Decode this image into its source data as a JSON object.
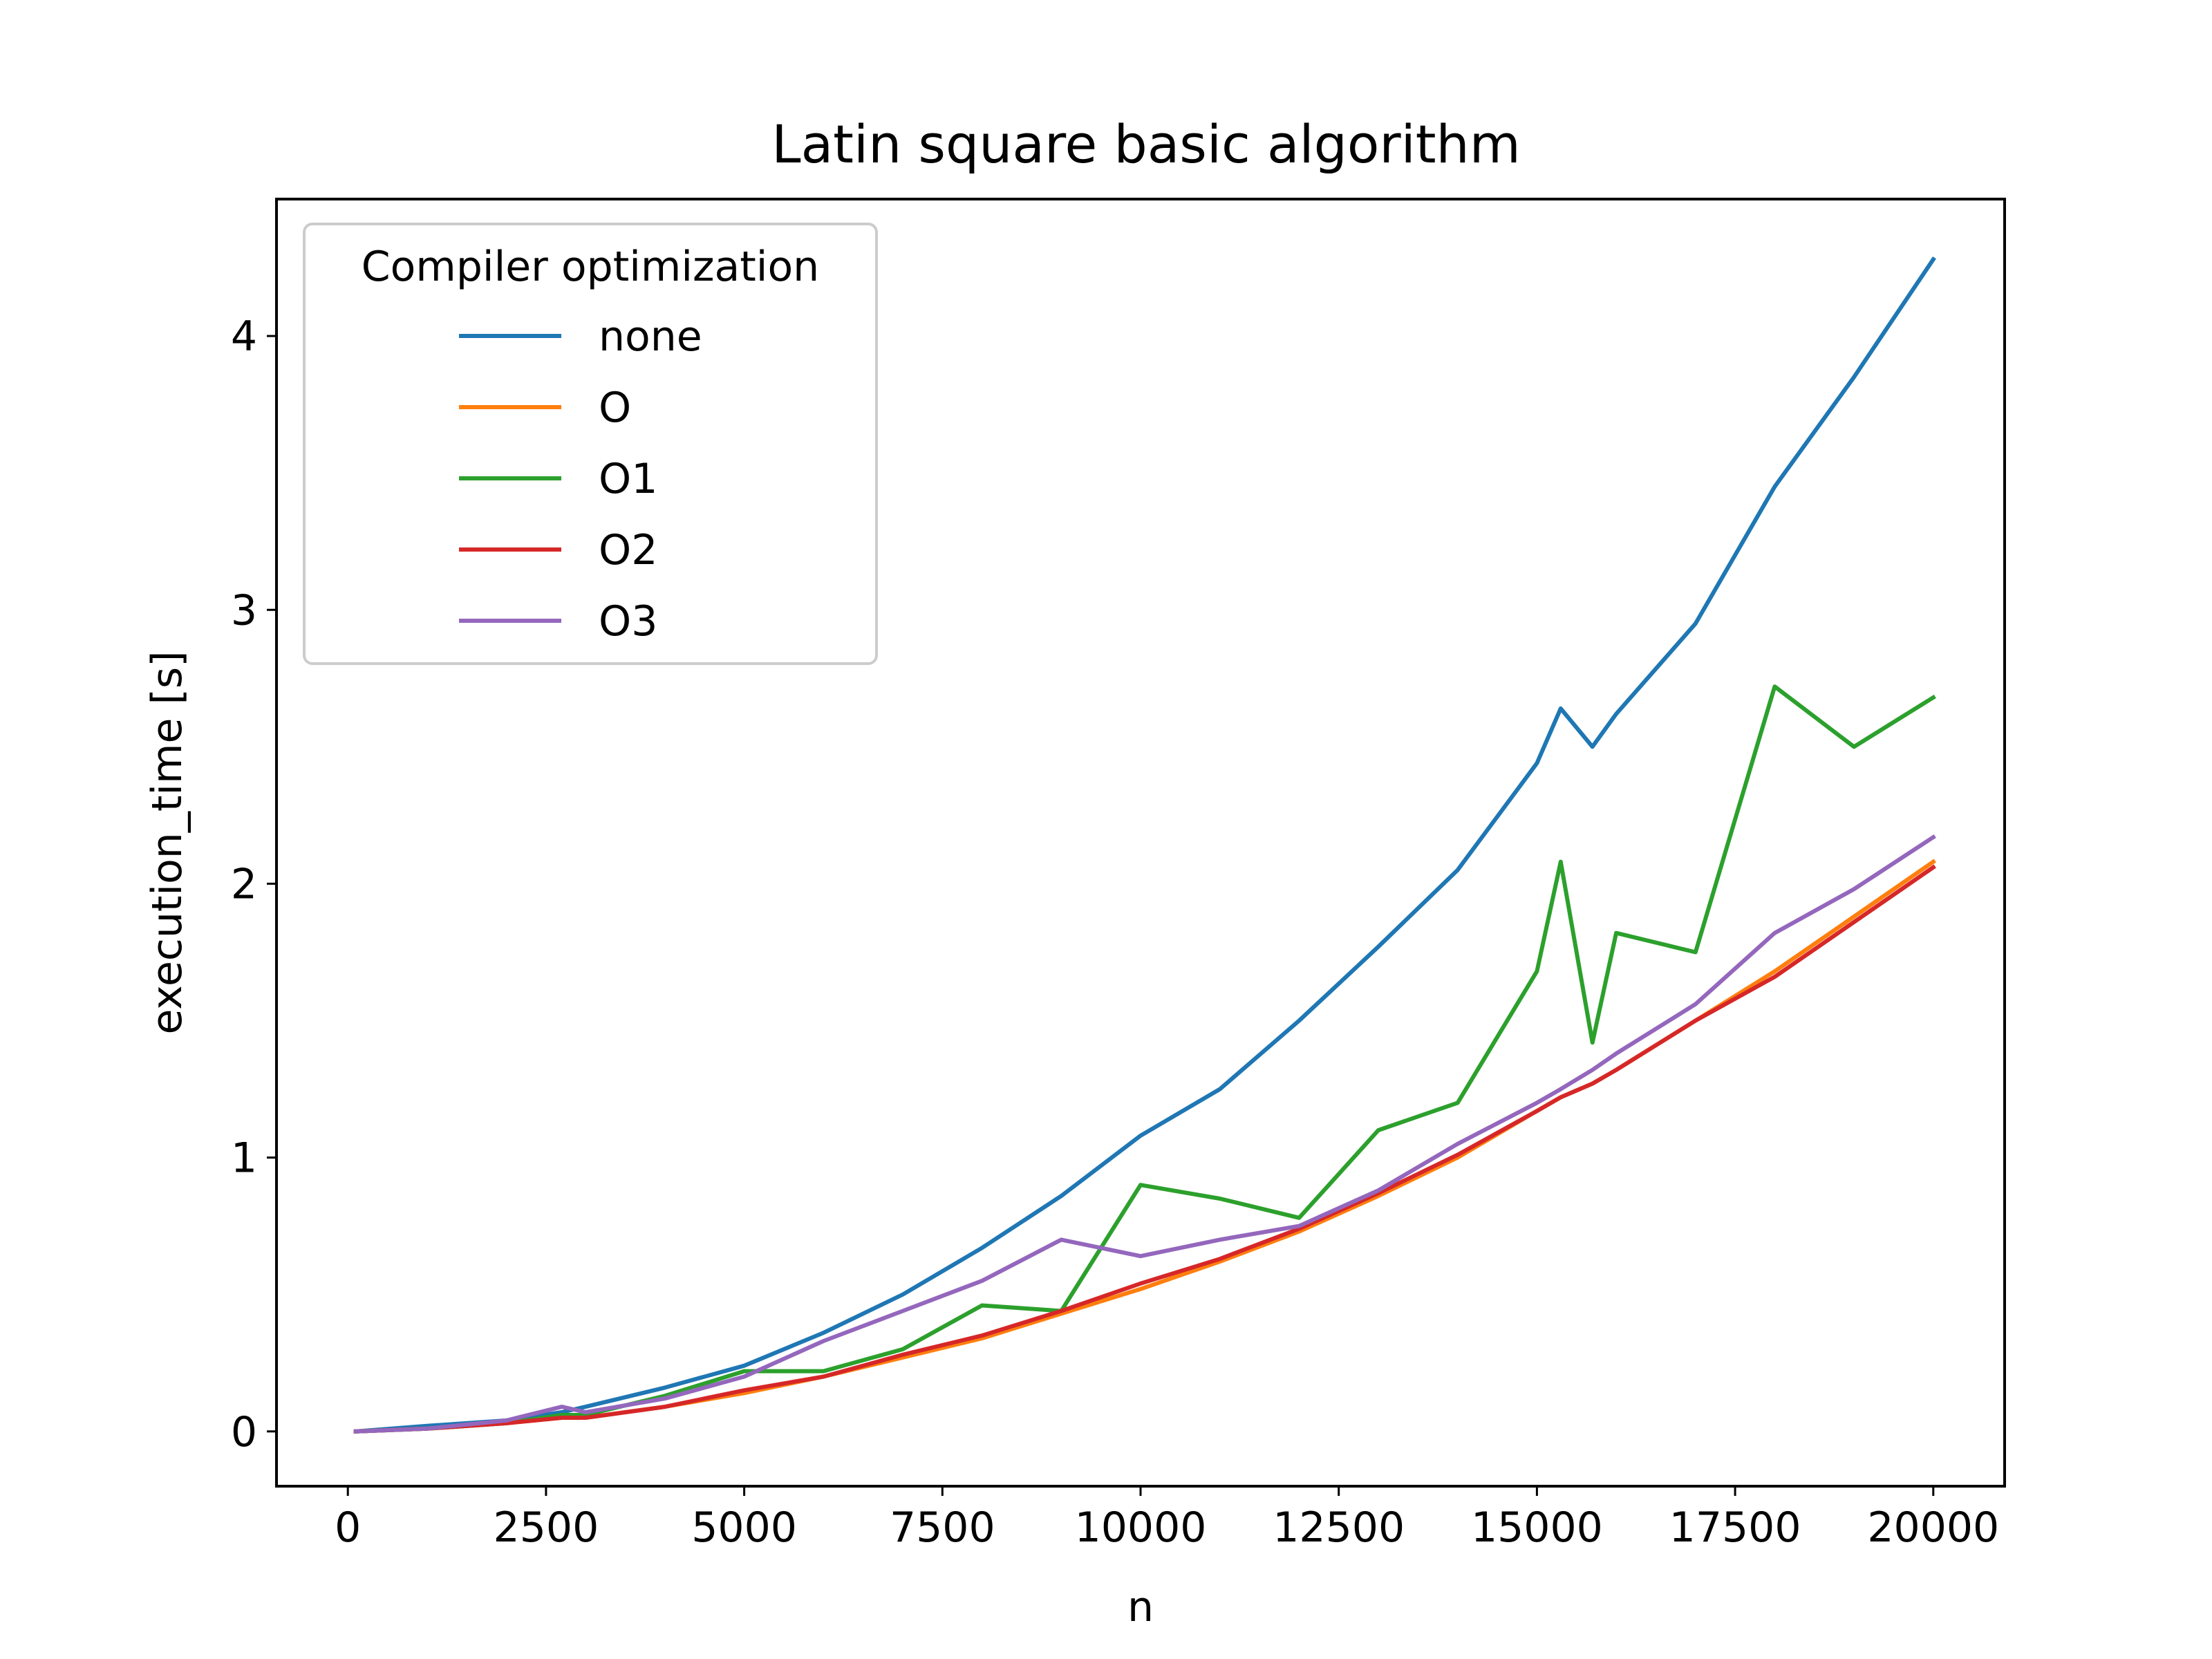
{
  "chart_data": {
    "type": "line",
    "title": "Latin square basic algorithm",
    "xlabel": "n",
    "ylabel": "execution_time [s]",
    "xlim": [
      -900,
      20900
    ],
    "ylim": [
      -0.2,
      4.5
    ],
    "xticks": [
      0,
      2500,
      5000,
      7500,
      10000,
      12500,
      15000,
      17500,
      20000
    ],
    "yticks": [
      0,
      1,
      2,
      3,
      4
    ],
    "grid": false,
    "legend": {
      "title": "Compiler optimization",
      "placement": "upper-left"
    },
    "x": [
      100,
      1000,
      2000,
      2700,
      3000,
      4000,
      5000,
      6000,
      7000,
      8000,
      9000,
      10000,
      11000,
      12000,
      13000,
      14000,
      15000,
      15300,
      15700,
      16000,
      17000,
      18000,
      19000,
      20000
    ],
    "series": [
      {
        "name": "none",
        "color": "#1f77b4",
        "values": [
          0.0,
          0.02,
          0.04,
          0.07,
          0.09,
          0.16,
          0.24,
          0.36,
          0.5,
          0.67,
          0.86,
          1.08,
          1.25,
          1.5,
          1.77,
          2.05,
          2.44,
          2.64,
          2.5,
          2.62,
          2.95,
          3.45,
          3.85,
          4.28
        ]
      },
      {
        "name": "O",
        "color": "#ff7f0e",
        "values": [
          0.0,
          0.01,
          0.03,
          0.05,
          0.05,
          0.09,
          0.14,
          0.2,
          0.27,
          0.34,
          0.43,
          0.52,
          0.62,
          0.73,
          0.86,
          1.0,
          1.17,
          1.22,
          1.27,
          1.32,
          1.5,
          1.68,
          1.88,
          2.08
        ]
      },
      {
        "name": "O1",
        "color": "#2ca02c",
        "values": [
          0.0,
          0.01,
          0.03,
          0.06,
          0.06,
          0.13,
          0.22,
          0.22,
          0.3,
          0.46,
          0.44,
          0.9,
          0.85,
          0.78,
          1.1,
          1.2,
          1.68,
          2.08,
          1.42,
          1.82,
          1.75,
          2.72,
          2.5,
          2.68
        ]
      },
      {
        "name": "O2",
        "color": "#d62728",
        "values": [
          0.0,
          0.01,
          0.03,
          0.05,
          0.05,
          0.09,
          0.15,
          0.2,
          0.28,
          0.35,
          0.44,
          0.54,
          0.63,
          0.74,
          0.87,
          1.01,
          1.17,
          1.22,
          1.27,
          1.32,
          1.5,
          1.66,
          1.86,
          2.06
        ]
      },
      {
        "name": "O3",
        "color": "#9467bd",
        "values": [
          0.0,
          0.01,
          0.04,
          0.09,
          0.07,
          0.12,
          0.2,
          0.33,
          0.44,
          0.55,
          0.7,
          0.64,
          0.7,
          0.75,
          0.88,
          1.05,
          1.2,
          1.25,
          1.32,
          1.38,
          1.56,
          1.82,
          1.98,
          2.17
        ]
      }
    ]
  }
}
